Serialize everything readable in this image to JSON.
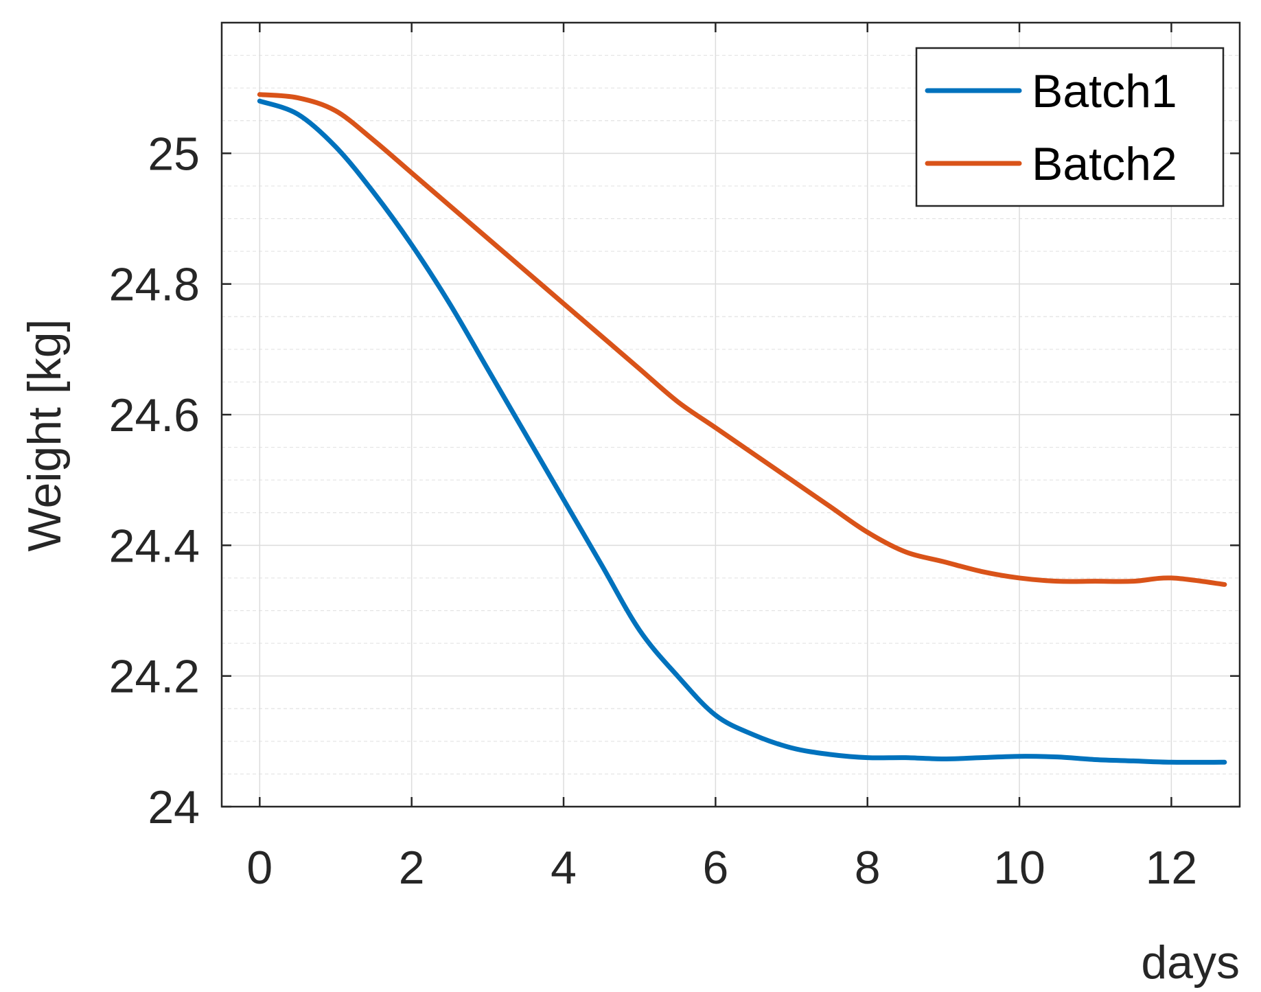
{
  "chart_data": {
    "type": "line",
    "title": "",
    "xlabel": "days",
    "ylabel": "Weight [kg]",
    "xlim": [
      -0.5,
      12.9
    ],
    "ylim": [
      24,
      25.2
    ],
    "xticks": [
      0,
      2,
      4,
      6,
      8,
      10,
      12
    ],
    "xtick_labels": [
      "0",
      "2",
      "4",
      "6",
      "8",
      "10",
      "12"
    ],
    "yticks": [
      24,
      24.2,
      24.4,
      24.6,
      24.8,
      25
    ],
    "ytick_labels": [
      "24",
      "24.2",
      "24.4",
      "24.6",
      "24.8",
      "25"
    ],
    "y_minor_step": 0.05,
    "grid": true,
    "legend_position": "top-right",
    "series": [
      {
        "name": "Batch1",
        "color": "#0072BD",
        "x": [
          0,
          0.5,
          1,
          1.5,
          2,
          2.5,
          3,
          3.5,
          4,
          4.5,
          5,
          5.5,
          6,
          6.5,
          7,
          7.5,
          8,
          8.5,
          9,
          9.5,
          10,
          10.5,
          11,
          11.5,
          12,
          12.7
        ],
        "y": [
          25.08,
          25.06,
          25.01,
          24.94,
          24.86,
          24.77,
          24.67,
          24.57,
          24.47,
          24.37,
          24.27,
          24.2,
          24.14,
          24.11,
          24.09,
          24.08,
          24.075,
          24.075,
          24.073,
          24.075,
          24.077,
          24.076,
          24.072,
          24.07,
          24.068,
          24.068
        ]
      },
      {
        "name": "Batch2",
        "color": "#D95319",
        "x": [
          0,
          0.5,
          1,
          1.5,
          2,
          2.5,
          3,
          3.5,
          4,
          4.5,
          5,
          5.5,
          6,
          6.5,
          7,
          7.5,
          8,
          8.5,
          9,
          9.5,
          10,
          10.5,
          11,
          11.5,
          12,
          12.7
        ],
        "y": [
          25.09,
          25.085,
          25.065,
          25.02,
          24.97,
          24.92,
          24.87,
          24.82,
          24.77,
          24.72,
          24.67,
          24.62,
          24.58,
          24.54,
          24.5,
          24.46,
          24.42,
          24.39,
          24.375,
          24.36,
          24.35,
          24.345,
          24.345,
          24.345,
          24.35,
          24.34
        ]
      }
    ]
  }
}
